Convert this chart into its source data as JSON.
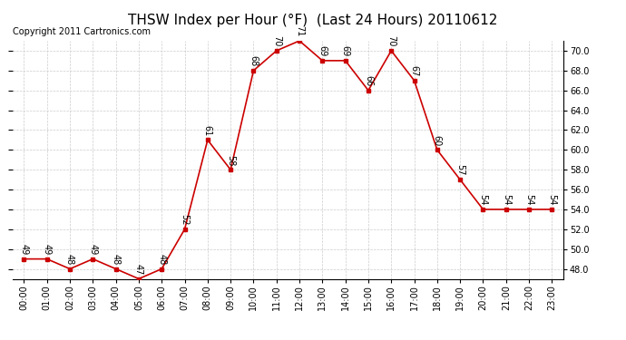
{
  "title": "THSW Index per Hour (°F)  (Last 24 Hours) 20110612",
  "copyright": "Copyright 2011 Cartronics.com",
  "hours": [
    "00:00",
    "01:00",
    "02:00",
    "03:00",
    "04:00",
    "05:00",
    "06:00",
    "07:00",
    "08:00",
    "09:00",
    "10:00",
    "11:00",
    "12:00",
    "13:00",
    "14:00",
    "15:00",
    "16:00",
    "17:00",
    "18:00",
    "19:00",
    "20:00",
    "21:00",
    "22:00",
    "23:00"
  ],
  "values": [
    49,
    49,
    48,
    49,
    48,
    47,
    48,
    52,
    61,
    58,
    68,
    70,
    71,
    69,
    69,
    66,
    70,
    67,
    60,
    57,
    54,
    54,
    54,
    54
  ],
  "line_color": "#cc0000",
  "marker_color": "#cc0000",
  "background_color": "#ffffff",
  "grid_color": "#cccccc",
  "ylim_min": 47.0,
  "ylim_max": 71.0,
  "ytick_step": 2.0,
  "title_fontsize": 11,
  "label_fontsize": 7,
  "copyright_fontsize": 7,
  "xtick_fontsize": 7,
  "ytick_fontsize": 7
}
